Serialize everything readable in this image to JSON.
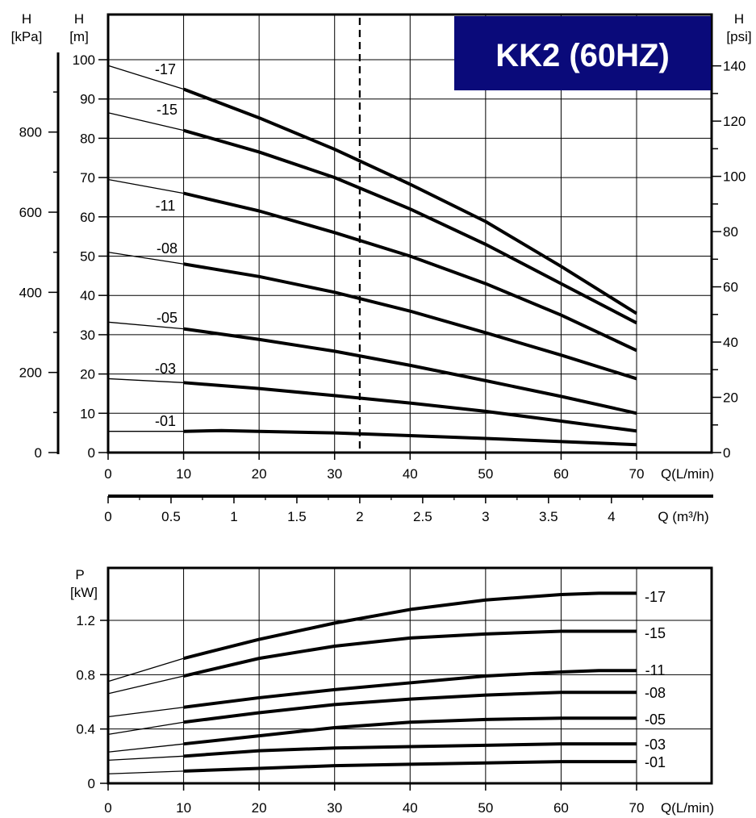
{
  "title": "KK2 (60HZ)",
  "colors": {
    "title_bg": "#0a0a7a",
    "title_fg": "#ffffff",
    "line": "#000000",
    "grid": "#000000"
  },
  "chart_data": [
    {
      "type": "line",
      "name": "head",
      "axis_labels": {
        "left_outer": [
          "H",
          "[kPa]"
        ],
        "left_inner": [
          "H",
          "[m]"
        ],
        "right": [
          "H",
          "[psi]"
        ],
        "x_bottom": "Q(L/min)",
        "x_secondary": "Q (m³/h)"
      },
      "xlim": [
        0,
        70
      ],
      "ylim": [
        0,
        100
      ],
      "x_ticks": [
        "0",
        "10",
        "20",
        "30",
        "40",
        "50",
        "60",
        "70"
      ],
      "y_ticks": [
        "0",
        "10",
        "20",
        "30",
        "40",
        "50",
        "60",
        "70",
        "80",
        "90",
        "100"
      ],
      "kpa_ticks": [
        "0",
        "200",
        "400",
        "600",
        "800"
      ],
      "psi_ticks": [
        "0",
        "20",
        "40",
        "60",
        "80",
        "100",
        "120",
        "140"
      ],
      "m3h_ticks": [
        "0",
        "0.5",
        "1",
        "1.5",
        "2",
        "2.5",
        "3",
        "3.5",
        "4"
      ],
      "design_point_q": 33.33,
      "series": [
        {
          "name": "-17",
          "points": [
            [
              0,
              98.5
            ],
            [
              10,
              92.5
            ],
            [
              20,
              85.2
            ],
            [
              30,
              77.2
            ],
            [
              40,
              68.3
            ],
            [
              50,
              58.8
            ],
            [
              60,
              47.4
            ],
            [
              70,
              35.4
            ]
          ]
        },
        {
          "name": "-15",
          "points": [
            [
              0,
              86.5
            ],
            [
              10,
              82.0
            ],
            [
              20,
              76.5
            ],
            [
              30,
              70.0
            ],
            [
              40,
              62.0
            ],
            [
              50,
              53.0
            ],
            [
              60,
              43.0
            ],
            [
              70,
              33.0
            ]
          ]
        },
        {
          "name": "-11",
          "points": [
            [
              0,
              69.5
            ],
            [
              10,
              66.0
            ],
            [
              20,
              61.5
            ],
            [
              30,
              56.0
            ],
            [
              40,
              50.0
            ],
            [
              50,
              43.0
            ],
            [
              60,
              35.0
            ],
            [
              70,
              26.0
            ]
          ]
        },
        {
          "name": "-08",
          "points": [
            [
              0,
              51.0
            ],
            [
              10,
              48.0
            ],
            [
              20,
              44.8
            ],
            [
              30,
              40.8
            ],
            [
              40,
              36.0
            ],
            [
              50,
              30.5
            ],
            [
              60,
              24.8
            ],
            [
              70,
              18.8
            ]
          ]
        },
        {
          "name": "-05",
          "points": [
            [
              0,
              33.2
            ],
            [
              10,
              31.5
            ],
            [
              20,
              28.8
            ],
            [
              30,
              25.8
            ],
            [
              40,
              22.2
            ],
            [
              50,
              18.3
            ],
            [
              60,
              14.3
            ],
            [
              70,
              10.0
            ]
          ]
        },
        {
          "name": "-03",
          "points": [
            [
              0,
              18.8
            ],
            [
              10,
              17.8
            ],
            [
              20,
              16.3
            ],
            [
              30,
              14.5
            ],
            [
              40,
              12.6
            ],
            [
              50,
              10.5
            ],
            [
              60,
              8.0
            ],
            [
              70,
              5.5
            ]
          ]
        },
        {
          "name": "-01",
          "points": [
            [
              0,
              5.4
            ],
            [
              10,
              5.4
            ],
            [
              15,
              5.6
            ],
            [
              20,
              5.4
            ],
            [
              30,
              5.0
            ],
            [
              40,
              4.3
            ],
            [
              50,
              3.6
            ],
            [
              60,
              2.8
            ],
            [
              70,
              2.0
            ]
          ]
        }
      ]
    },
    {
      "type": "line",
      "name": "power",
      "axis_labels": {
        "y": [
          "P",
          "[kW]"
        ],
        "x": "Q(L/min)"
      },
      "xlim": [
        0,
        70
      ],
      "ylim": [
        0,
        1.4
      ],
      "x_ticks": [
        "0",
        "10",
        "20",
        "30",
        "40",
        "50",
        "60",
        "70"
      ],
      "y_ticks": [
        "0",
        "0.4",
        "0.8",
        "1.2"
      ],
      "series": [
        {
          "name": "-17",
          "points": [
            [
              0,
              0.75
            ],
            [
              10,
              0.92
            ],
            [
              20,
              1.06
            ],
            [
              30,
              1.18
            ],
            [
              40,
              1.28
            ],
            [
              50,
              1.35
            ],
            [
              60,
              1.39
            ],
            [
              65,
              1.4
            ],
            [
              70,
              1.4
            ]
          ]
        },
        {
          "name": "-15",
          "points": [
            [
              0,
              0.66
            ],
            [
              10,
              0.79
            ],
            [
              20,
              0.92
            ],
            [
              30,
              1.01
            ],
            [
              40,
              1.07
            ],
            [
              50,
              1.1
            ],
            [
              60,
              1.12
            ],
            [
              70,
              1.12
            ]
          ]
        },
        {
          "name": "-11",
          "points": [
            [
              0,
              0.49
            ],
            [
              10,
              0.56
            ],
            [
              20,
              0.63
            ],
            [
              30,
              0.69
            ],
            [
              40,
              0.74
            ],
            [
              50,
              0.79
            ],
            [
              60,
              0.82
            ],
            [
              65,
              0.83
            ],
            [
              70,
              0.83
            ]
          ]
        },
        {
          "name": "-08",
          "points": [
            [
              0,
              0.36
            ],
            [
              10,
              0.45
            ],
            [
              20,
              0.52
            ],
            [
              30,
              0.58
            ],
            [
              40,
              0.62
            ],
            [
              50,
              0.65
            ],
            [
              60,
              0.67
            ],
            [
              70,
              0.67
            ]
          ]
        },
        {
          "name": "-05",
          "points": [
            [
              0,
              0.23
            ],
            [
              10,
              0.29
            ],
            [
              20,
              0.35
            ],
            [
              30,
              0.41
            ],
            [
              40,
              0.45
            ],
            [
              50,
              0.47
            ],
            [
              60,
              0.48
            ],
            [
              70,
              0.48
            ]
          ]
        },
        {
          "name": "-03",
          "points": [
            [
              0,
              0.17
            ],
            [
              10,
              0.2
            ],
            [
              20,
              0.24
            ],
            [
              30,
              0.26
            ],
            [
              40,
              0.27
            ],
            [
              50,
              0.28
            ],
            [
              60,
              0.29
            ],
            [
              70,
              0.29
            ]
          ]
        },
        {
          "name": "-01",
          "points": [
            [
              0,
              0.07
            ],
            [
              10,
              0.09
            ],
            [
              20,
              0.11
            ],
            [
              30,
              0.13
            ],
            [
              40,
              0.14
            ],
            [
              50,
              0.15
            ],
            [
              60,
              0.16
            ],
            [
              70,
              0.16
            ]
          ]
        }
      ]
    }
  ]
}
